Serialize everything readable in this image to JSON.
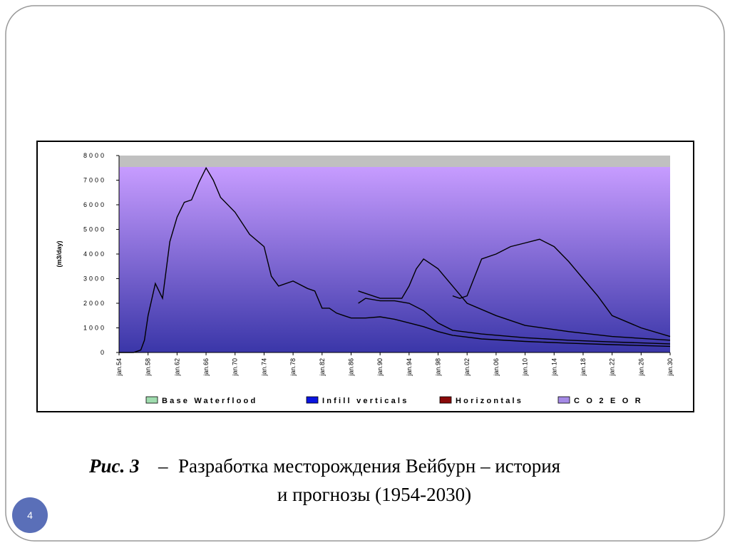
{
  "chart_data": {
    "type": "line",
    "y_label": "(m3/day)",
    "xlim": [
      1954,
      2030
    ],
    "xticks": [
      {
        "value": 1954,
        "label": "jan.54"
      },
      {
        "value": 1958,
        "label": "jan.58"
      },
      {
        "value": 1962,
        "label": "jan.62"
      },
      {
        "value": 1966,
        "label": "jan.66"
      },
      {
        "value": 1970,
        "label": "jan.70"
      },
      {
        "value": 1974,
        "label": "jan.74"
      },
      {
        "value": 1978,
        "label": "jan.78"
      },
      {
        "value": 1982,
        "label": "jan.82"
      },
      {
        "value": 1986,
        "label": "jan.86"
      },
      {
        "value": 1990,
        "label": "jan.90"
      },
      {
        "value": 1994,
        "label": "jan.94"
      },
      {
        "value": 1998,
        "label": "jan.98"
      },
      {
        "value": 2002,
        "label": "jan.02"
      },
      {
        "value": 2006,
        "label": "jan.06"
      },
      {
        "value": 2010,
        "label": "jan.10"
      },
      {
        "value": 2014,
        "label": "jan.14"
      },
      {
        "value": 2018,
        "label": "jan.18"
      },
      {
        "value": 2022,
        "label": "jan.22"
      },
      {
        "value": 2026,
        "label": "jan.26"
      },
      {
        "value": 2030,
        "label": "jan.30"
      }
    ],
    "ylim": [
      0,
      8000
    ],
    "yticks": [
      0,
      1000,
      2000,
      3000,
      4000,
      5000,
      6000,
      7000,
      8000
    ],
    "line_color": "#000000",
    "legend": "bottom",
    "series": [
      {
        "name": "Base Waterflood",
        "color": "#9fdcae",
        "x": [
          1954,
          1956,
          1957,
          1957.5,
          1958,
          1959,
          1960,
          1961,
          1962,
          1963,
          1964,
          1965,
          1966,
          1967,
          1968,
          1970,
          1972,
          1974,
          1975,
          1976,
          1978,
          1980,
          1981,
          1982,
          1983,
          1984,
          1985,
          1986,
          1987,
          1988,
          1990,
          1992,
          1994,
          1996,
          1998,
          2000,
          2004,
          2010,
          2016,
          2022,
          2030
        ],
        "values": [
          0,
          0,
          100,
          500,
          1500,
          2800,
          2200,
          4500,
          5500,
          6100,
          6200,
          6900,
          7500,
          7000,
          6300,
          5700,
          4800,
          4300,
          3100,
          2700,
          2900,
          2600,
          2500,
          1800,
          1800,
          1600,
          1500,
          1400,
          1400,
          1400,
          1450,
          1350,
          1200,
          1050,
          850,
          700,
          550,
          450,
          380,
          320,
          250
        ]
      },
      {
        "name": "Infill verticals",
        "color": "#0a14e0",
        "x": [
          1987,
          1988,
          1990,
          1992,
          1994,
          1996,
          1998,
          2000,
          2004,
          2010,
          2016,
          2022,
          2030
        ],
        "values": [
          2000,
          2200,
          2100,
          2100,
          2000,
          1700,
          1200,
          900,
          750,
          600,
          500,
          430,
          350
        ]
      },
      {
        "name": "Horizontals",
        "color": "#8a0a0a",
        "x": [
          1987,
          1990,
          1993,
          1994,
          1995,
          1996,
          1998,
          2000,
          2002,
          2006,
          2010,
          2016,
          2022,
          2030
        ],
        "values": [
          2500,
          2200,
          2200,
          2700,
          3400,
          3800,
          3400,
          2700,
          2000,
          1500,
          1100,
          850,
          650,
          500
        ]
      },
      {
        "name": "C O 2 E O R",
        "color": "#a58ae6",
        "x": [
          2000,
          2001,
          2002,
          2004,
          2006,
          2008,
          2010,
          2012,
          2014,
          2016,
          2018,
          2020,
          2022,
          2026,
          2030
        ],
        "values": [
          2300,
          2200,
          2300,
          3800,
          4000,
          4300,
          4450,
          4600,
          4300,
          3700,
          3000,
          2300,
          1500,
          1000,
          650
        ]
      }
    ]
  },
  "caption": {
    "label": "Рис. 3",
    "dash": "–",
    "line1": "Разработка месторождения Вейбурн – история",
    "line2": "и прогнозы (1954-2030)"
  },
  "page_number": "4"
}
